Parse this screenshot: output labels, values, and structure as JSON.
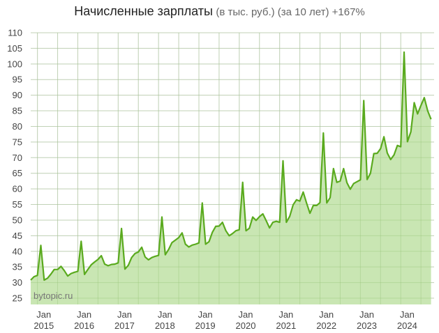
{
  "title": {
    "main": "Начисленные зарплаты",
    "subtitle": "(в тыс. руб.) (за 10 лет) +167%"
  },
  "watermark": "bytopic.ru",
  "colors": {
    "line": "#5aaa1e",
    "fill": "#c9e6b3",
    "grid": "#dddddd",
    "text": "#444444"
  },
  "chart_data": {
    "type": "area",
    "title": "Начисленные зарплаты (в тыс. руб.) (за 10 лет) +167%",
    "xlabel": "",
    "ylabel": "",
    "ylim": [
      25,
      110
    ],
    "yticks": [
      25,
      30,
      35,
      40,
      45,
      50,
      55,
      60,
      65,
      70,
      75,
      80,
      85,
      90,
      95,
      100,
      105,
      110
    ],
    "xticks": [
      {
        "line1": "Jan",
        "line2": "2015"
      },
      {
        "line1": "Jan",
        "line2": "2016"
      },
      {
        "line1": "Jan",
        "line2": "2017"
      },
      {
        "line1": "Jan",
        "line2": "2018"
      },
      {
        "line1": "Jan",
        "line2": "2019"
      },
      {
        "line1": "Jan",
        "line2": "2020"
      },
      {
        "line1": "Jan",
        "line2": "2021"
      },
      {
        "line1": "Jan",
        "line2": "2022"
      },
      {
        "line1": "Jan",
        "line2": "2023"
      },
      {
        "line1": "Jan",
        "line2": "2024"
      }
    ],
    "grid": true,
    "legend": "none",
    "start": "2014-09",
    "frequency": "monthly",
    "series": [
      {
        "name": "Начисленные зарплаты",
        "values": [
          30.8,
          31.9,
          32.3,
          41.9,
          30.8,
          31.4,
          32.7,
          34.2,
          34.2,
          35.2,
          33.8,
          32.1,
          32.9,
          33.3,
          33.6,
          43.2,
          32.6,
          34.2,
          35.7,
          36.6,
          37.4,
          38.6,
          35.9,
          35.4,
          35.8,
          35.9,
          36.3,
          47.3,
          34.3,
          35.5,
          38.0,
          39.3,
          39.8,
          41.3,
          38.2,
          37.3,
          38.0,
          38.4,
          38.7,
          51.0,
          38.9,
          40.6,
          42.8,
          43.6,
          44.4,
          45.9,
          42.3,
          41.4,
          42.0,
          42.3,
          42.7,
          55.5,
          42.3,
          43.1,
          46.1,
          48.0,
          48.1,
          49.3,
          46.6,
          45.0,
          45.7,
          46.6,
          46.9,
          62.1,
          46.6,
          47.4,
          51.0,
          49.9,
          51.1,
          52.0,
          49.8,
          47.5,
          49.3,
          49.6,
          49.3,
          69.0,
          49.3,
          51.2,
          54.9,
          56.5,
          56.1,
          59.0,
          55.5,
          52.2,
          54.7,
          54.7,
          55.6,
          77.9,
          55.5,
          57.2,
          66.5,
          62.1,
          62.5,
          66.5,
          62.0,
          59.9,
          61.7,
          62.3,
          62.9,
          88.3,
          63.0,
          65.0,
          71.3,
          71.4,
          72.9,
          76.7,
          71.5,
          69.4,
          70.9,
          73.9,
          73.5,
          103.8,
          75.1,
          78.3,
          87.6,
          84.0,
          86.7,
          89.2,
          85.0,
          82.3
        ]
      }
    ]
  }
}
